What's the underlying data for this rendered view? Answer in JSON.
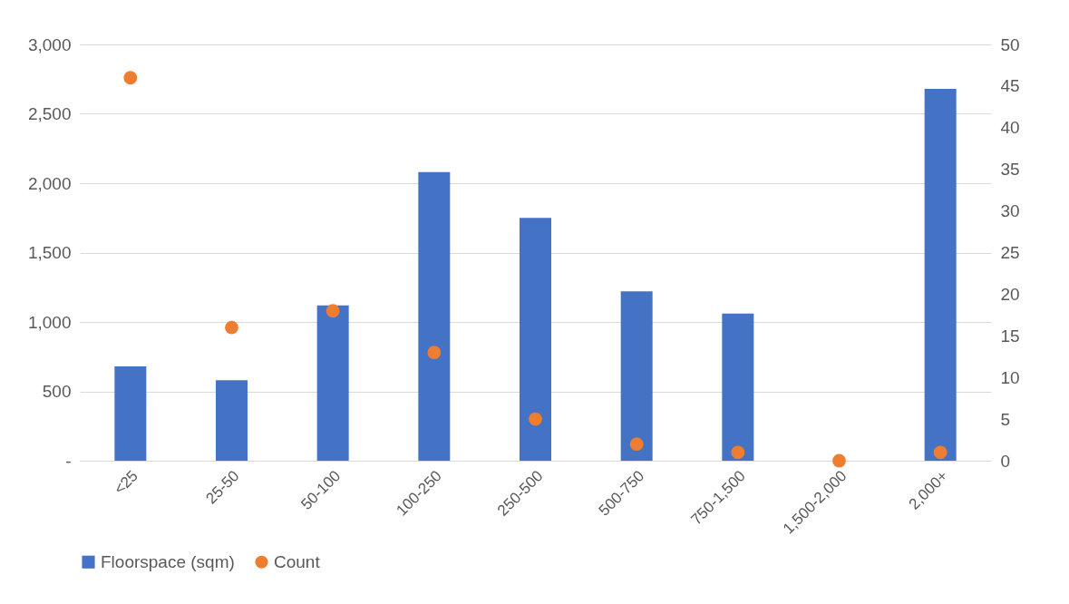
{
  "chart_data": {
    "type": "bar",
    "categories": [
      "<25",
      "25-50",
      "50-100",
      "100-250",
      "250-500",
      "500-750",
      "750-1,500",
      "1,500-2,000",
      "2,000+"
    ],
    "series": [
      {
        "name": "Floorspace (sqm)",
        "color": "#4472c4",
        "values": [
          680,
          580,
          1120,
          2080,
          1750,
          1220,
          1060,
          0,
          2680
        ]
      },
      {
        "name": "Count",
        "type": "scatter",
        "axis": "y2",
        "color": "#ed7d31",
        "values": [
          46,
          16,
          18,
          13,
          5,
          2,
          1,
          0,
          1
        ]
      }
    ],
    "ylim": [
      0,
      3000
    ],
    "yticks": [
      {
        "value": 0,
        "label": "-"
      },
      {
        "value": 500,
        "label": "500"
      },
      {
        "value": 1000,
        "label": "1,000"
      },
      {
        "value": 1500,
        "label": "1,500"
      },
      {
        "value": 2000,
        "label": "2,000"
      },
      {
        "value": 2500,
        "label": "2,500"
      },
      {
        "value": 3000,
        "label": "3,000"
      }
    ],
    "y2lim": [
      0,
      50
    ],
    "y2ticks": [
      0,
      5,
      10,
      15,
      20,
      25,
      30,
      35,
      40,
      45,
      50
    ],
    "grid": "y",
    "legend": "bottom",
    "marker": "circle"
  }
}
